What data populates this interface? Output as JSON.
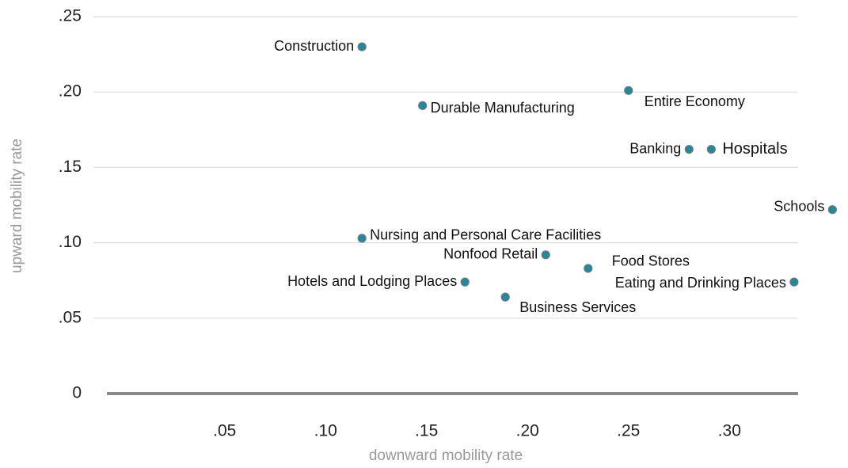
{
  "chart_data": {
    "type": "scatter",
    "xlabel": "downward mobility rate",
    "ylabel": "upward mobility rate",
    "points": [
      {
        "label": "Construction",
        "x": 0.118,
        "y": 0.23
      },
      {
        "label": "Durable Manufacturing",
        "x": 0.148,
        "y": 0.191
      },
      {
        "label": "Entire Economy",
        "x": 0.25,
        "y": 0.201
      },
      {
        "label": "Banking",
        "x": 0.28,
        "y": 0.162
      },
      {
        "label": "Hospitals",
        "x": 0.291,
        "y": 0.162
      },
      {
        "label": "Schools",
        "x": 0.351,
        "y": 0.122
      },
      {
        "label": "Nursing and Personal Care Facilities",
        "x": 0.118,
        "y": 0.103
      },
      {
        "label": "Nonfood Retail",
        "x": 0.209,
        "y": 0.092
      },
      {
        "label": "Food Stores",
        "x": 0.23,
        "y": 0.083
      },
      {
        "label": "Eating and Drinking Places",
        "x": 0.332,
        "y": 0.074
      },
      {
        "label": "Hotels and Lodging Places",
        "x": 0.169,
        "y": 0.074
      },
      {
        "label": "Business Services",
        "x": 0.189,
        "y": 0.064
      }
    ],
    "color": "#1f8a9e",
    "xlim": [
      -0.015,
      0.334
    ],
    "ylim": [
      0,
      0.25
    ],
    "xticks": [
      {
        "value": 0.05,
        "label": ".05"
      },
      {
        "value": 0.1,
        "label": ".10"
      },
      {
        "value": 0.15,
        "label": ".15"
      },
      {
        "value": 0.2,
        "label": ".20"
      },
      {
        "value": 0.25,
        "label": ".25"
      },
      {
        "value": 0.3,
        "label": ".30"
      }
    ],
    "yticks": [
      0,
      {
        "value": 0.05,
        "label": ".05"
      },
      {
        "value": 0.1,
        "label": ".10"
      },
      {
        "value": 0.15,
        "label": ".15"
      },
      {
        "value": 0.2,
        "label": ".20"
      },
      {
        "value": 0.25,
        "label": ".25"
      }
    ],
    "grid": true
  }
}
